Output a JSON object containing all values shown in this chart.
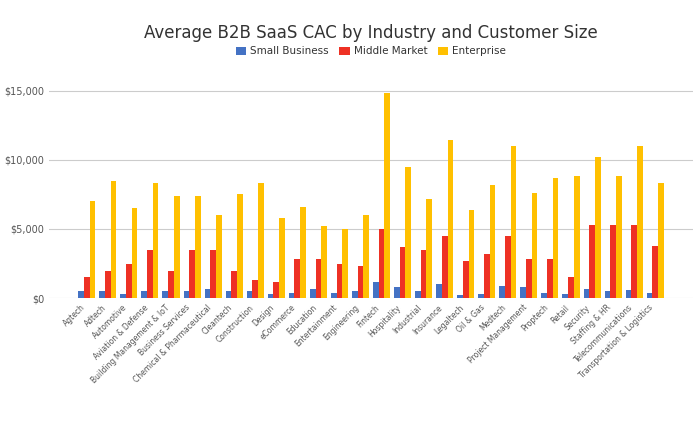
{
  "title": "Average B2B SaaS CAC by Industry and Customer Size",
  "categories": [
    "Agtech",
    "Adtech",
    "Automotive",
    "Aviation & Defense",
    "Building Management & IoT",
    "Business Services",
    "Chemical & Pharmaceutical",
    "Cleantech",
    "Construction",
    "Design",
    "eCommerce",
    "Education",
    "Entertainment",
    "Engineering",
    "Fintech",
    "Hospitality",
    "Industrial",
    "Insurance",
    "Legaltech",
    "Oil & Gas",
    "Medtech",
    "Project Management",
    "Proptech",
    "Retail",
    "Security",
    "Staffing & HR",
    "Telecommunications",
    "Transportation & Logistics"
  ],
  "small_business": [
    500,
    500,
    300,
    500,
    500,
    500,
    700,
    500,
    500,
    300,
    400,
    700,
    400,
    500,
    1200,
    800,
    500,
    1000,
    200,
    300,
    900,
    800,
    400,
    300,
    700,
    500,
    600,
    400
  ],
  "middle_market": [
    1500,
    2000,
    2500,
    3500,
    2000,
    3500,
    3500,
    2000,
    1300,
    1200,
    2800,
    2800,
    2500,
    2300,
    5000,
    3700,
    3500,
    4500,
    2700,
    3200,
    4500,
    2800,
    2800,
    1500,
    5300,
    5300,
    5300,
    3800
  ],
  "enterprise": [
    7000,
    8500,
    6500,
    8300,
    7400,
    7400,
    6000,
    7500,
    8300,
    5800,
    6600,
    5200,
    5000,
    6000,
    14800,
    9500,
    7200,
    11400,
    6400,
    8200,
    11000,
    7600,
    8700,
    8800,
    10200,
    8800,
    11000,
    8300
  ],
  "colors": {
    "small_business": "#4472C4",
    "middle_market": "#EE3124",
    "enterprise": "#FFC000"
  },
  "ylim": [
    0,
    16000
  ],
  "yticks": [
    0,
    5000,
    10000,
    15000
  ],
  "legend_labels": [
    "Small Business",
    "Middle Market",
    "Enterprise"
  ],
  "bg_color": "#ffffff",
  "grid_color": "#cccccc",
  "title_fontsize": 12,
  "tick_fontsize": 5.5,
  "ytick_fontsize": 7,
  "bar_width": 0.27,
  "legend_fontsize": 7.5
}
